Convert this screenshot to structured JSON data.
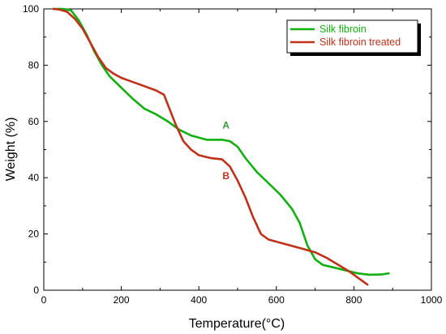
{
  "chart_data": {
    "type": "line",
    "title": "",
    "xlabel": "Temperature(°C)",
    "ylabel": "Weight (%)",
    "xlim": [
      0,
      1000
    ],
    "ylim": [
      0,
      100
    ],
    "x_ticks": [
      "0",
      "200",
      "400",
      "600",
      "800",
      "1000"
    ],
    "y_ticks": [
      "0",
      "20",
      "40",
      "60",
      "80",
      "100"
    ],
    "grid": false,
    "legend_position": "top-right",
    "series": [
      {
        "name": "Silk fibroin",
        "color": "#11b011",
        "points": [
          [
            25,
            100
          ],
          [
            50,
            100
          ],
          [
            70,
            99.5
          ],
          [
            90,
            96
          ],
          [
            110,
            91
          ],
          [
            130,
            85
          ],
          [
            150,
            80
          ],
          [
            170,
            76
          ],
          [
            200,
            72
          ],
          [
            230,
            68
          ],
          [
            260,
            64.5
          ],
          [
            290,
            62.5
          ],
          [
            320,
            60
          ],
          [
            350,
            57
          ],
          [
            380,
            55
          ],
          [
            420,
            53.5
          ],
          [
            460,
            53.5
          ],
          [
            480,
            53
          ],
          [
            500,
            51
          ],
          [
            520,
            47
          ],
          [
            550,
            42
          ],
          [
            580,
            38
          ],
          [
            610,
            34
          ],
          [
            640,
            29
          ],
          [
            660,
            24
          ],
          [
            680,
            16
          ],
          [
            700,
            11
          ],
          [
            720,
            9
          ],
          [
            750,
            8
          ],
          [
            780,
            7
          ],
          [
            810,
            6
          ],
          [
            840,
            5.5
          ],
          [
            870,
            5.6
          ],
          [
            890,
            6
          ]
        ]
      },
      {
        "name": "Silk fibroin treated",
        "color": "#c0311a",
        "points": [
          [
            25,
            100
          ],
          [
            40,
            99.8
          ],
          [
            60,
            99
          ],
          [
            80,
            96.5
          ],
          [
            100,
            93
          ],
          [
            120,
            88
          ],
          [
            140,
            83
          ],
          [
            160,
            79
          ],
          [
            180,
            77
          ],
          [
            200,
            75.5
          ],
          [
            230,
            74
          ],
          [
            260,
            72.5
          ],
          [
            290,
            71
          ],
          [
            310,
            69.5
          ],
          [
            320,
            66
          ],
          [
            340,
            59
          ],
          [
            360,
            53
          ],
          [
            380,
            50
          ],
          [
            400,
            48
          ],
          [
            430,
            47
          ],
          [
            460,
            46.5
          ],
          [
            480,
            44
          ],
          [
            500,
            39
          ],
          [
            520,
            33
          ],
          [
            540,
            26
          ],
          [
            560,
            20
          ],
          [
            580,
            18
          ],
          [
            620,
            16.5
          ],
          [
            660,
            15
          ],
          [
            700,
            13.5
          ],
          [
            730,
            11.5
          ],
          [
            760,
            9
          ],
          [
            790,
            6.5
          ],
          [
            810,
            4.5
          ],
          [
            835,
            2
          ]
        ]
      }
    ],
    "annotations": [
      {
        "text": "A",
        "x": 470,
        "y": 57.5,
        "color": "#3a9a3a"
      },
      {
        "text": "B",
        "x": 470,
        "y": 39.5,
        "color": "#c0311a"
      }
    ]
  }
}
